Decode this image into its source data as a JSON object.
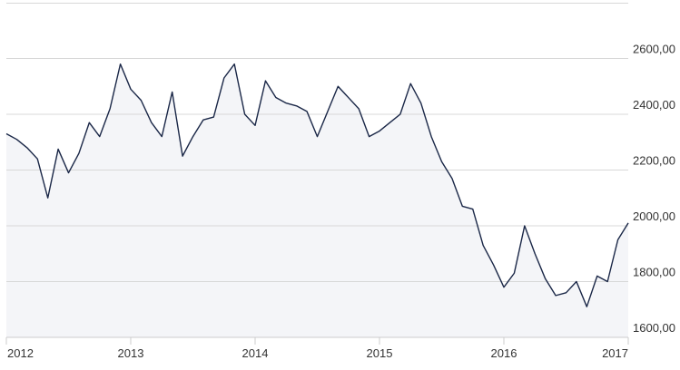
{
  "chart_data": {
    "type": "line",
    "categories": [
      "2012",
      null,
      null,
      null,
      null,
      null,
      null,
      null,
      null,
      null,
      null,
      null,
      "2013",
      null,
      null,
      null,
      null,
      null,
      null,
      null,
      null,
      null,
      null,
      null,
      "2014",
      null,
      null,
      null,
      null,
      null,
      null,
      null,
      null,
      null,
      null,
      null,
      "2015",
      null,
      null,
      null,
      null,
      null,
      null,
      null,
      null,
      null,
      null,
      null,
      "2016",
      null,
      null,
      null,
      null,
      null,
      null,
      null,
      null,
      null,
      null,
      null,
      "2017"
    ],
    "values": [
      2330,
      2310,
      2280,
      2240,
      2100,
      2275,
      2190,
      2260,
      2370,
      2320,
      2420,
      2580,
      2490,
      2450,
      2370,
      2320,
      2480,
      2250,
      2320,
      2380,
      2390,
      2530,
      2580,
      2400,
      2360,
      2520,
      2460,
      2440,
      2430,
      2410,
      2320,
      2410,
      2500,
      2460,
      2420,
      2320,
      2340,
      2370,
      2400,
      2510,
      2440,
      2320,
      2230,
      2170,
      2070,
      2060,
      1930,
      1860,
      1780,
      1830,
      2000,
      1900,
      1810,
      1750,
      1760,
      1800,
      1710,
      1820,
      1800,
      1950,
      2010
    ],
    "color": "#1a2747",
    "area_color": "#f4f5f8",
    "ylim": [
      1600,
      2800
    ],
    "yticks": [
      {
        "value": 1600,
        "label": "1600,00"
      },
      {
        "value": 1800,
        "label": "1800,00"
      },
      {
        "value": 2000,
        "label": "2000,00"
      },
      {
        "value": 2200,
        "label": "2200,00"
      },
      {
        "value": 2400,
        "label": "2400,00"
      },
      {
        "value": 2600,
        "label": "2600,00"
      }
    ],
    "grid": true
  }
}
